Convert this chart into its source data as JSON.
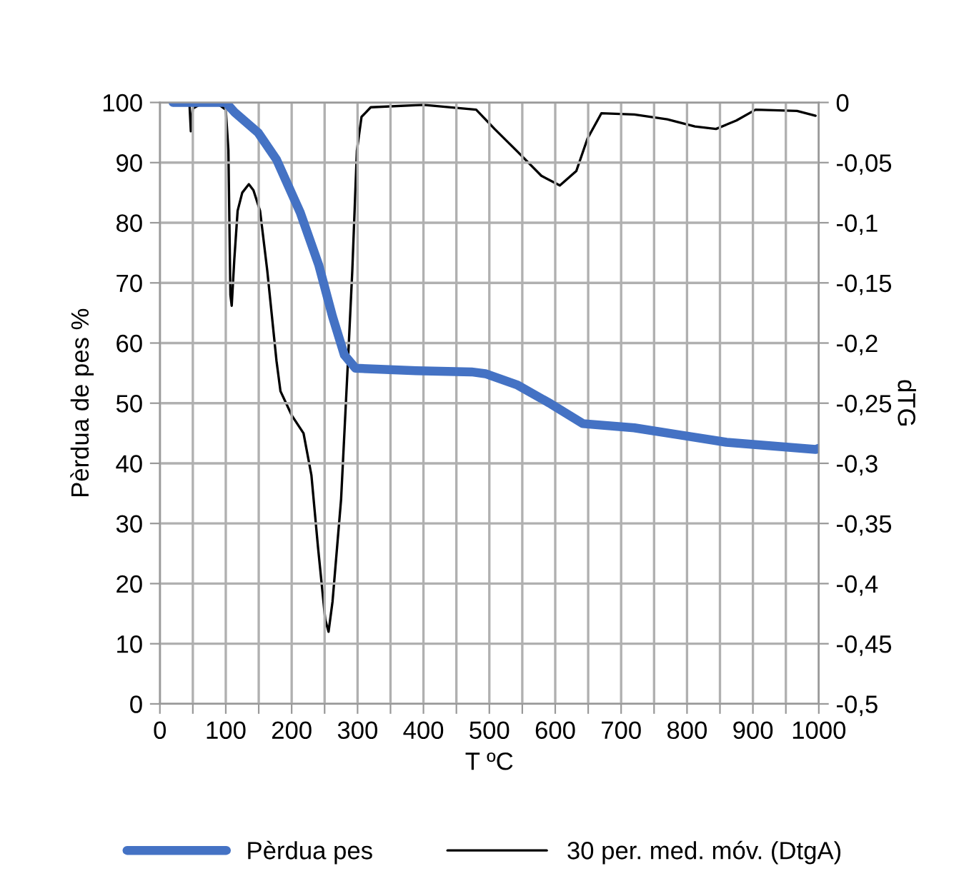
{
  "chart_data": {
    "type": "line",
    "xlabel": "T ºC",
    "ylabel": "Pèrdua de pes %",
    "y2label": "dTG",
    "xlim": [
      0,
      1000
    ],
    "xticks": [
      0,
      {
        "value": 50,
        "label": null
      },
      100,
      {
        "value": 150,
        "label": null
      },
      200,
      {
        "value": 250,
        "label": null
      },
      300,
      {
        "value": 350,
        "label": null
      },
      400,
      {
        "value": 450,
        "label": null
      },
      500,
      {
        "value": 550,
        "label": null
      },
      600,
      {
        "value": 650,
        "label": null
      },
      700,
      {
        "value": 750,
        "label": null
      },
      800,
      {
        "value": 850,
        "label": null
      },
      900,
      {
        "value": 950,
        "label": null
      },
      1000
    ],
    "ylim": [
      0,
      100
    ],
    "yticks": [
      0,
      10,
      20,
      30,
      40,
      50,
      60,
      70,
      80,
      90,
      100
    ],
    "y2lim": [
      -0.5,
      0
    ],
    "y2ticks": [
      {
        "value": -0.5,
        "label": "-0,5"
      },
      {
        "value": -0.45,
        "label": "-0,45"
      },
      {
        "value": -0.4,
        "label": "-0,4"
      },
      {
        "value": -0.35,
        "label": "-0,35"
      },
      {
        "value": -0.3,
        "label": "-0,3"
      },
      {
        "value": -0.25,
        "label": "-0,25"
      },
      {
        "value": -0.2,
        "label": "-0,2"
      },
      {
        "value": -0.15,
        "label": "-0,15"
      },
      {
        "value": -0.1,
        "label": "-0,1"
      },
      {
        "value": -0.05,
        "label": "-0,05"
      },
      {
        "value": 0,
        "label": "0"
      }
    ],
    "grid": true,
    "legend": "bottom",
    "marker": "none",
    "line_style": "solid",
    "series": [
      {
        "name": "Pèrdua pes",
        "color": "#4472c4",
        "x": [
          20,
          100,
          114,
          149,
          177,
          213,
          241,
          262,
          280,
          297,
          389,
          473,
          494,
          543,
          593,
          642,
          720,
          790,
          860,
          995,
          1000
        ],
        "values": [
          100,
          100,
          98.3,
          95,
          90.5,
          81.7,
          73,
          64.4,
          58,
          55.8,
          55.4,
          55.2,
          54.9,
          53,
          49.9,
          46.6,
          45.9,
          44.7,
          43.5,
          42.3,
          42.5
        ]
      },
      {
        "name": "30 per. med. móv. (DtgA)",
        "color": "#000000",
        "axis": "y2",
        "x": [
          45,
          47,
          50,
          60,
          90,
          100,
          104,
          107,
          109,
          113,
          118,
          125,
          135,
          142,
          152,
          163,
          177,
          183,
          200,
          218,
          230,
          240,
          251,
          256,
          262,
          275,
          285,
          292,
          299,
          306,
          320,
          400,
          480,
          508,
          543,
          579,
          607,
          632,
          649,
          670,
          720,
          770,
          812,
          844,
          875,
          904,
          967,
          995
        ],
        "values": [
          -0.002,
          -0.024,
          -0.005,
          -0.002,
          -0.002,
          -0.006,
          -0.04,
          -0.16,
          -0.169,
          -0.13,
          -0.09,
          -0.075,
          -0.068,
          -0.073,
          -0.09,
          -0.14,
          -0.215,
          -0.24,
          -0.26,
          -0.275,
          -0.31,
          -0.37,
          -0.43,
          -0.44,
          -0.415,
          -0.33,
          -0.22,
          -0.14,
          -0.04,
          -0.012,
          -0.004,
          -0.002,
          -0.006,
          -0.022,
          -0.041,
          -0.061,
          -0.069,
          -0.057,
          -0.03,
          -0.009,
          -0.01,
          -0.014,
          -0.02,
          -0.022,
          -0.015,
          -0.006,
          -0.007,
          -0.011
        ]
      }
    ]
  }
}
